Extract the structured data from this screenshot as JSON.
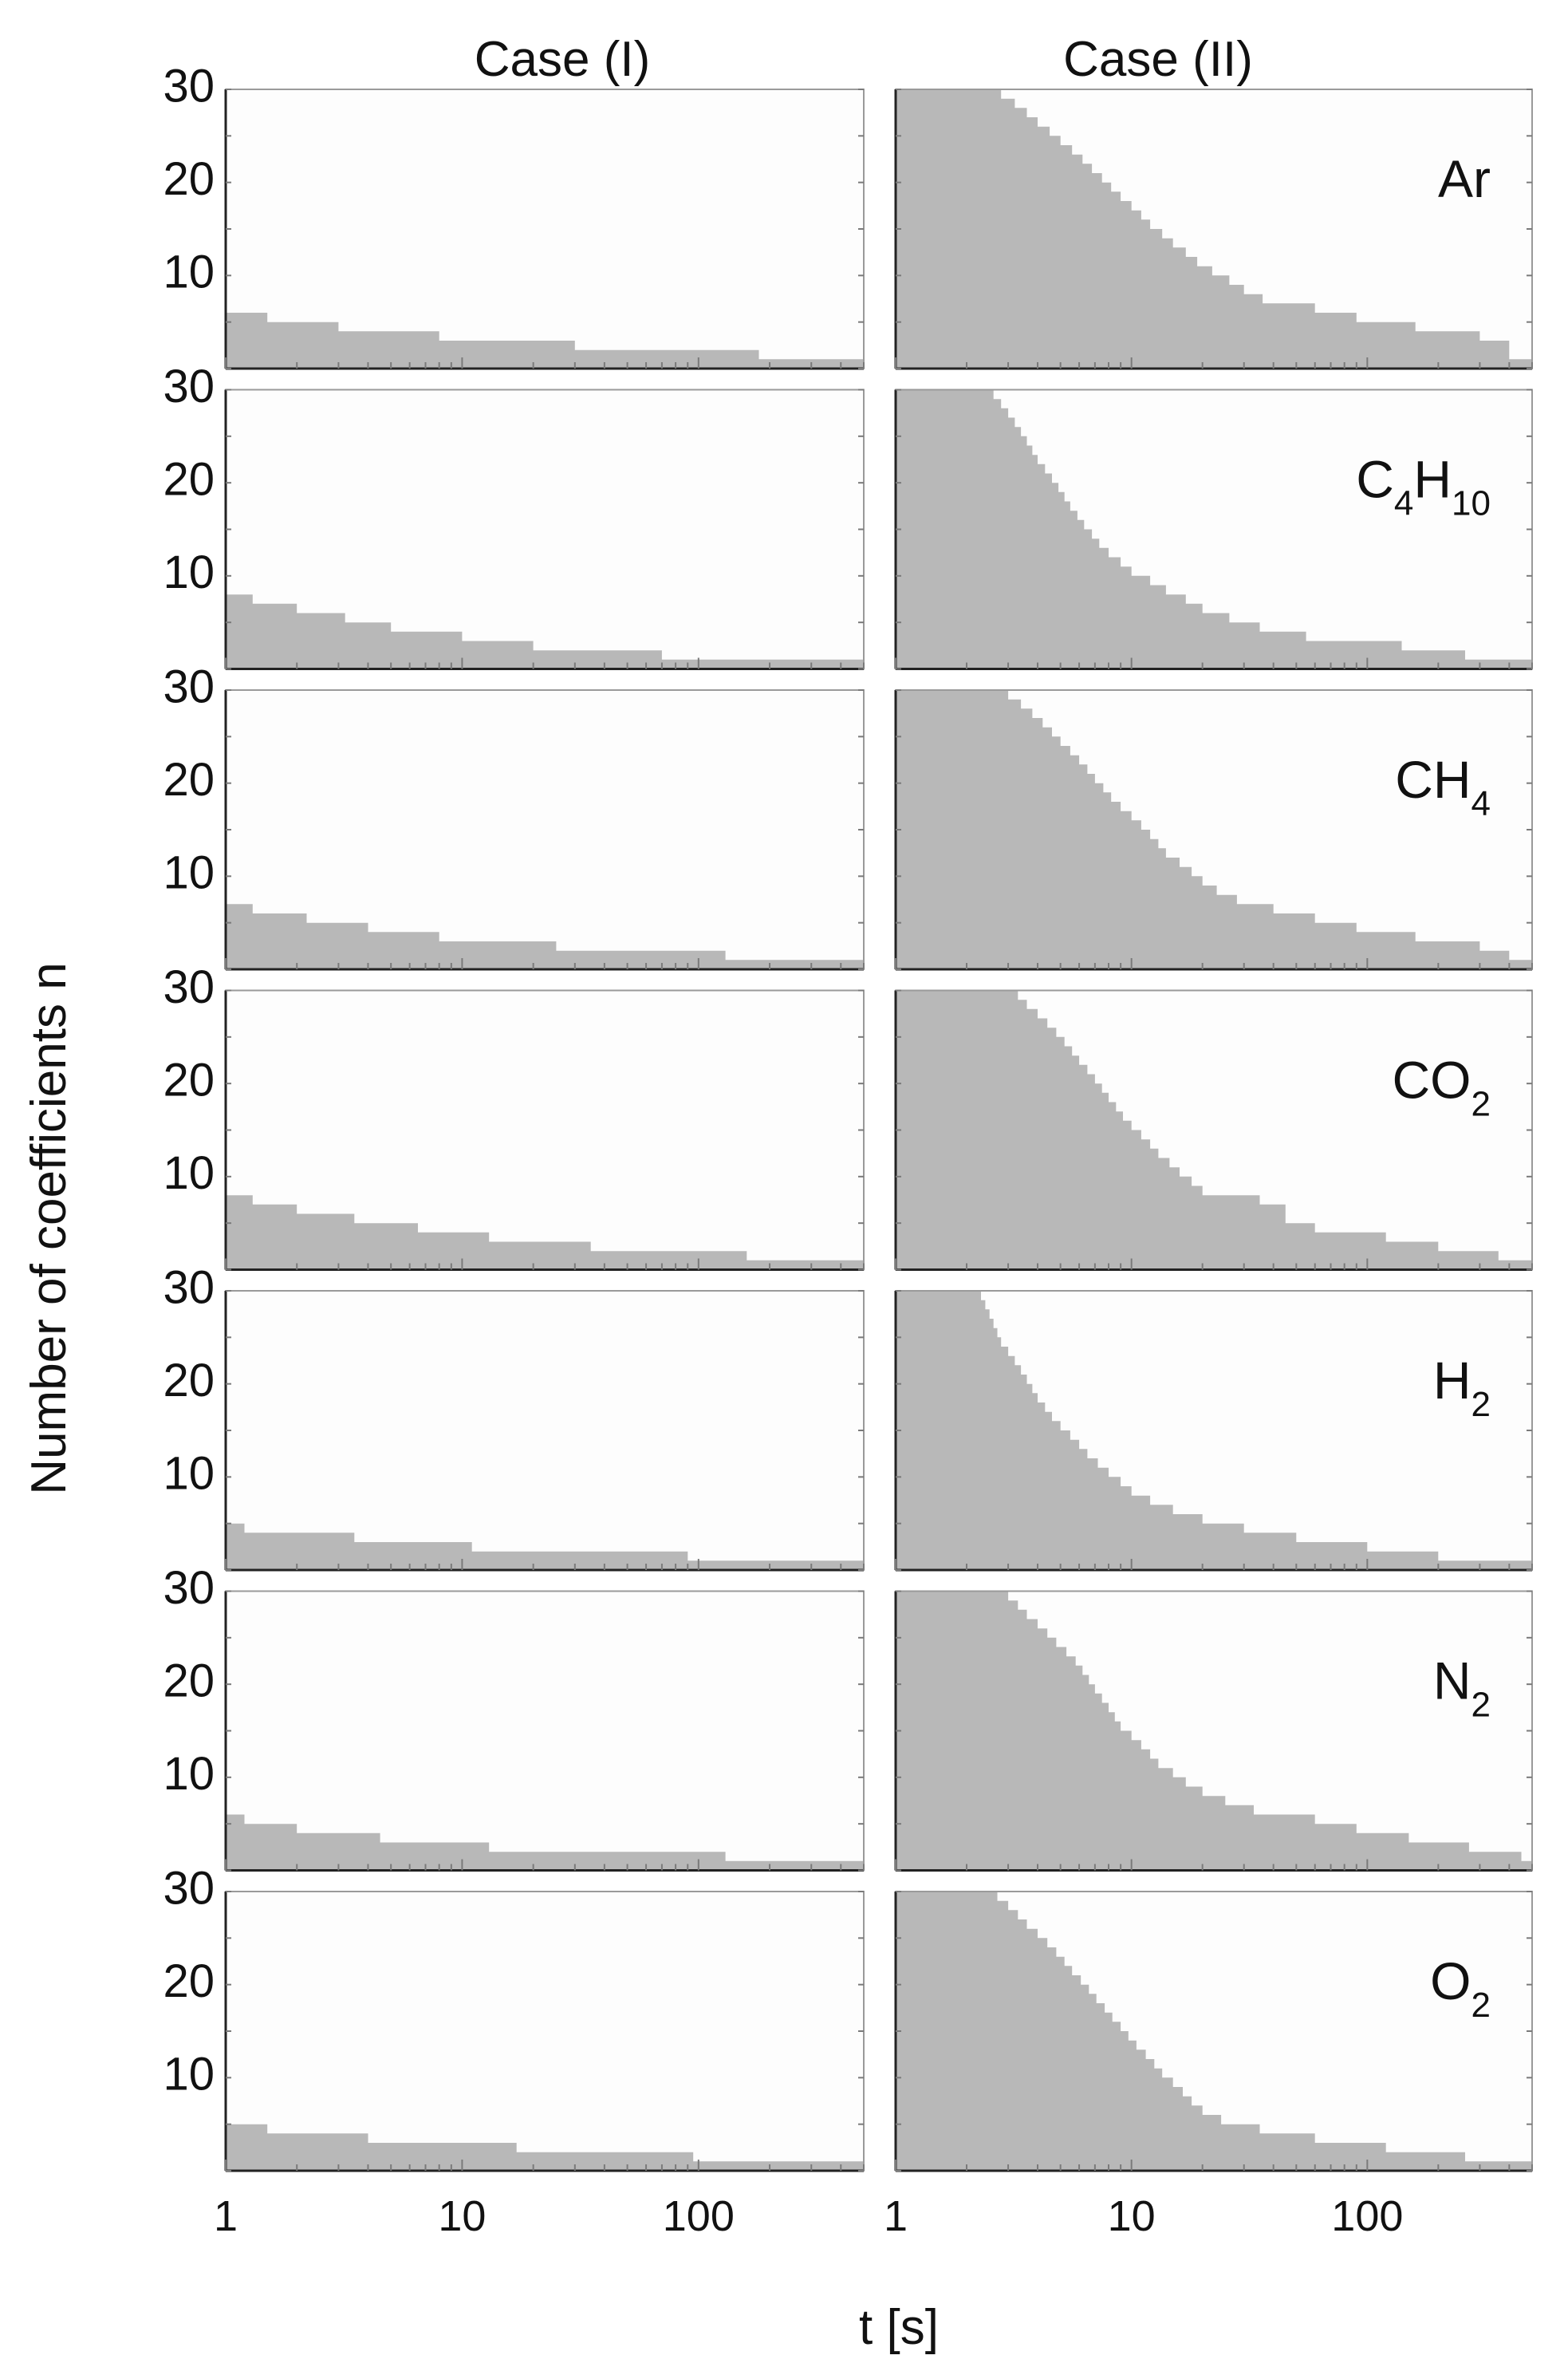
{
  "chart_data": {
    "type": "area",
    "layout": "7 rows x 2 columns of step-area panels",
    "columns": [
      "Case (I)",
      "Case (II)"
    ],
    "ylabel": "Number of coefficients n",
    "xlabel": "t [s]",
    "x_scale": "log",
    "xlim": [
      1,
      500
    ],
    "ylim": [
      0,
      30
    ],
    "yticks": [
      "30",
      "20",
      "10"
    ],
    "xticks": [
      "1",
      "10",
      "100"
    ],
    "fill_color": "#b8b8b8",
    "gases": [
      {
        "label": "Ar",
        "main": "Ar",
        "sub": "",
        "tail": "",
        "case1": [
          [
            1,
            6
          ],
          [
            1.5,
            5
          ],
          [
            3,
            4
          ],
          [
            8,
            3
          ],
          [
            30,
            2
          ],
          [
            180,
            1
          ],
          [
            500,
            1
          ]
        ],
        "case2": [
          [
            1,
            30
          ],
          [
            1.8,
            30
          ],
          [
            2.8,
            29
          ],
          [
            3.2,
            28
          ],
          [
            3.6,
            27
          ],
          [
            4,
            26
          ],
          [
            4.5,
            25
          ],
          [
            5,
            24
          ],
          [
            5.6,
            23
          ],
          [
            6.2,
            22
          ],
          [
            6.8,
            21
          ],
          [
            7.5,
            20
          ],
          [
            8.2,
            19
          ],
          [
            9,
            18
          ],
          [
            10,
            17
          ],
          [
            11,
            16
          ],
          [
            12,
            15
          ],
          [
            13.5,
            14
          ],
          [
            15,
            13
          ],
          [
            17,
            12
          ],
          [
            19,
            11
          ],
          [
            22,
            10
          ],
          [
            26,
            9
          ],
          [
            30,
            8
          ],
          [
            36,
            7
          ],
          [
            60,
            6
          ],
          [
            90,
            5
          ],
          [
            160,
            4
          ],
          [
            300,
            3
          ],
          [
            400,
            1
          ],
          [
            500,
            1
          ]
        ]
      },
      {
        "label": "C4H10",
        "main": "C",
        "sub": "4",
        "tail": "H",
        "sub2": "10",
        "case1": [
          [
            1,
            8
          ],
          [
            1.3,
            7
          ],
          [
            2,
            6
          ],
          [
            3.2,
            5
          ],
          [
            5,
            4
          ],
          [
            10,
            3
          ],
          [
            20,
            2
          ],
          [
            70,
            1
          ],
          [
            500,
            1
          ]
        ],
        "case2": [
          [
            1,
            30
          ],
          [
            2.3,
            30
          ],
          [
            2.6,
            29
          ],
          [
            2.8,
            28
          ],
          [
            3,
            27
          ],
          [
            3.2,
            26
          ],
          [
            3.4,
            25
          ],
          [
            3.6,
            24
          ],
          [
            3.8,
            23
          ],
          [
            4,
            22
          ],
          [
            4.3,
            21
          ],
          [
            4.6,
            20
          ],
          [
            4.9,
            19
          ],
          [
            5.2,
            18
          ],
          [
            5.5,
            17
          ],
          [
            5.9,
            16
          ],
          [
            6.3,
            15
          ],
          [
            6.8,
            14
          ],
          [
            7.3,
            13
          ],
          [
            8,
            12
          ],
          [
            9,
            11
          ],
          [
            10,
            10
          ],
          [
            12,
            9
          ],
          [
            14,
            8
          ],
          [
            17,
            7
          ],
          [
            20,
            6
          ],
          [
            26,
            5
          ],
          [
            35,
            4
          ],
          [
            55,
            3
          ],
          [
            140,
            2
          ],
          [
            260,
            1
          ],
          [
            500,
            0
          ]
        ]
      },
      {
        "label": "CH4",
        "main": "CH",
        "sub": "4",
        "tail": "",
        "case1": [
          [
            1,
            7
          ],
          [
            1.3,
            6
          ],
          [
            2.2,
            5
          ],
          [
            4,
            4
          ],
          [
            8,
            3
          ],
          [
            25,
            2
          ],
          [
            130,
            1
          ],
          [
            500,
            1
          ]
        ],
        "case2": [
          [
            1,
            30
          ],
          [
            2.6,
            30
          ],
          [
            3,
            29
          ],
          [
            3.4,
            28
          ],
          [
            3.8,
            27
          ],
          [
            4.2,
            26
          ],
          [
            4.6,
            25
          ],
          [
            5,
            24
          ],
          [
            5.5,
            23
          ],
          [
            6,
            22
          ],
          [
            6.5,
            21
          ],
          [
            7,
            20
          ],
          [
            7.6,
            19
          ],
          [
            8.2,
            18
          ],
          [
            9,
            17
          ],
          [
            10,
            16
          ],
          [
            11,
            15
          ],
          [
            12,
            14
          ],
          [
            13,
            13
          ],
          [
            14,
            12
          ],
          [
            16,
            11
          ],
          [
            18,
            10
          ],
          [
            20,
            9
          ],
          [
            23,
            8
          ],
          [
            28,
            7
          ],
          [
            40,
            6
          ],
          [
            60,
            5
          ],
          [
            90,
            4
          ],
          [
            160,
            3
          ],
          [
            300,
            2
          ],
          [
            400,
            1
          ],
          [
            500,
            1
          ]
        ]
      },
      {
        "label": "CO2",
        "main": "CO",
        "sub": "2",
        "tail": "",
        "case1": [
          [
            1,
            8
          ],
          [
            1.3,
            7
          ],
          [
            2,
            6
          ],
          [
            3.5,
            5
          ],
          [
            6.5,
            4
          ],
          [
            13,
            3
          ],
          [
            35,
            2
          ],
          [
            160,
            1
          ],
          [
            500,
            1
          ]
        ],
        "case2": [
          [
            1,
            30
          ],
          [
            3,
            30
          ],
          [
            3.3,
            29
          ],
          [
            3.6,
            28
          ],
          [
            4,
            27
          ],
          [
            4.4,
            26
          ],
          [
            4.8,
            25
          ],
          [
            5.2,
            24
          ],
          [
            5.6,
            23
          ],
          [
            6,
            22
          ],
          [
            6.5,
            21
          ],
          [
            7,
            20
          ],
          [
            7.5,
            19
          ],
          [
            8,
            18
          ],
          [
            8.6,
            17
          ],
          [
            9.2,
            16
          ],
          [
            10,
            15
          ],
          [
            11,
            14
          ],
          [
            12,
            13
          ],
          [
            13,
            12
          ],
          [
            14.5,
            11
          ],
          [
            16,
            10
          ],
          [
            18,
            9
          ],
          [
            20,
            8
          ],
          [
            35,
            7
          ],
          [
            45,
            5
          ],
          [
            60,
            4
          ],
          [
            120,
            3
          ],
          [
            200,
            2
          ],
          [
            360,
            1
          ],
          [
            500,
            1
          ]
        ]
      },
      {
        "label": "H2",
        "main": "H",
        "sub": "2",
        "tail": "",
        "case1": [
          [
            1,
            5
          ],
          [
            1.2,
            4
          ],
          [
            3.5,
            3
          ],
          [
            11,
            2
          ],
          [
            90,
            1
          ],
          [
            500,
            1
          ]
        ],
        "case2": [
          [
            1,
            30
          ],
          [
            2.2,
            30
          ],
          [
            2.3,
            29
          ],
          [
            2.4,
            28
          ],
          [
            2.5,
            27
          ],
          [
            2.6,
            26
          ],
          [
            2.7,
            25
          ],
          [
            2.8,
            24
          ],
          [
            3,
            23
          ],
          [
            3.2,
            22
          ],
          [
            3.4,
            21
          ],
          [
            3.6,
            20
          ],
          [
            3.8,
            19
          ],
          [
            4,
            18
          ],
          [
            4.3,
            17
          ],
          [
            4.6,
            16
          ],
          [
            5,
            15
          ],
          [
            5.5,
            14
          ],
          [
            6,
            13
          ],
          [
            6.5,
            12
          ],
          [
            7.2,
            11
          ],
          [
            8,
            10
          ],
          [
            9,
            9
          ],
          [
            10,
            8
          ],
          [
            12,
            7
          ],
          [
            15,
            6
          ],
          [
            20,
            5
          ],
          [
            30,
            4
          ],
          [
            50,
            3
          ],
          [
            100,
            2
          ],
          [
            200,
            1
          ],
          [
            500,
            1
          ]
        ]
      },
      {
        "label": "N2",
        "main": "N",
        "sub": "2",
        "tail": "",
        "case1": [
          [
            1,
            6
          ],
          [
            1.2,
            5
          ],
          [
            2,
            4
          ],
          [
            4.5,
            3
          ],
          [
            13,
            2
          ],
          [
            130,
            1
          ],
          [
            500,
            1
          ]
        ],
        "case2": [
          [
            1,
            30
          ],
          [
            2.7,
            30
          ],
          [
            3,
            29
          ],
          [
            3.3,
            28
          ],
          [
            3.6,
            27
          ],
          [
            4,
            26
          ],
          [
            4.4,
            25
          ],
          [
            4.8,
            24
          ],
          [
            5.3,
            23
          ],
          [
            5.8,
            22
          ],
          [
            6.2,
            21
          ],
          [
            6.6,
            20
          ],
          [
            7,
            19
          ],
          [
            7.5,
            18
          ],
          [
            8,
            17
          ],
          [
            8.5,
            16
          ],
          [
            9,
            15
          ],
          [
            10,
            14
          ],
          [
            11,
            13
          ],
          [
            12,
            12
          ],
          [
            13,
            11
          ],
          [
            15,
            10
          ],
          [
            17,
            9
          ],
          [
            20,
            8
          ],
          [
            25,
            7
          ],
          [
            33,
            6
          ],
          [
            60,
            5
          ],
          [
            90,
            4
          ],
          [
            150,
            3
          ],
          [
            270,
            2
          ],
          [
            450,
            1
          ],
          [
            500,
            1
          ]
        ]
      },
      {
        "label": "O2",
        "main": "O",
        "sub": "2",
        "tail": "",
        "case1": [
          [
            1,
            5
          ],
          [
            1.5,
            4
          ],
          [
            4,
            3
          ],
          [
            17,
            2
          ],
          [
            95,
            1
          ],
          [
            500,
            1
          ]
        ],
        "case2": [
          [
            1,
            30
          ],
          [
            2.4,
            30
          ],
          [
            2.7,
            29
          ],
          [
            3,
            28
          ],
          [
            3.3,
            27
          ],
          [
            3.6,
            26
          ],
          [
            4,
            25
          ],
          [
            4.4,
            24
          ],
          [
            4.8,
            23
          ],
          [
            5.2,
            22
          ],
          [
            5.6,
            21
          ],
          [
            6.1,
            20
          ],
          [
            6.6,
            19
          ],
          [
            7.1,
            18
          ],
          [
            7.7,
            17
          ],
          [
            8.3,
            16
          ],
          [
            9,
            15
          ],
          [
            9.7,
            14
          ],
          [
            10.5,
            13
          ],
          [
            11.5,
            12
          ],
          [
            12.5,
            11
          ],
          [
            13.5,
            10
          ],
          [
            15,
            9
          ],
          [
            16.5,
            8
          ],
          [
            18,
            7
          ],
          [
            20,
            6
          ],
          [
            24,
            5
          ],
          [
            35,
            4
          ],
          [
            60,
            3
          ],
          [
            120,
            2
          ],
          [
            260,
            1
          ],
          [
            500,
            1
          ]
        ]
      }
    ]
  }
}
